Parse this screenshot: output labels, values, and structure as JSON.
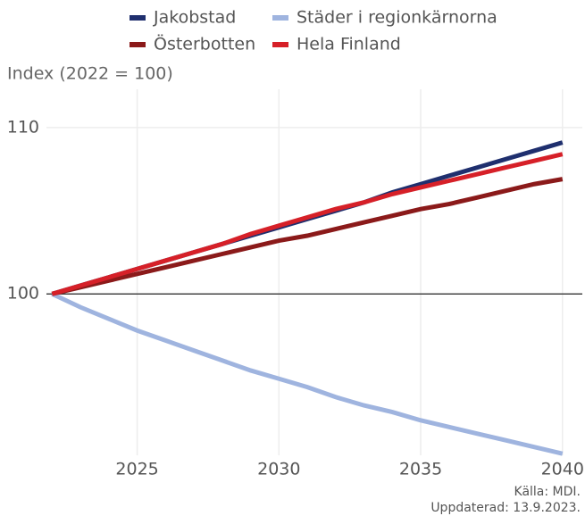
{
  "chart_data": {
    "type": "line",
    "y_axis_label": "Index (2022 = 100)",
    "x": [
      2022,
      2023,
      2024,
      2025,
      2026,
      2027,
      2028,
      2029,
      2030,
      2031,
      2032,
      2033,
      2034,
      2035,
      2036,
      2037,
      2038,
      2039,
      2040
    ],
    "series": [
      {
        "name": "Jakobstad",
        "color": "#1f2f6e",
        "values": [
          100,
          100.5,
          101.0,
          101.5,
          102.0,
          102.5,
          103.0,
          103.5,
          104.0,
          104.5,
          105.0,
          105.5,
          106.1,
          106.6,
          107.1,
          107.6,
          108.1,
          108.6,
          109.1
        ]
      },
      {
        "name": "Städer i regionkärnorna",
        "color": "#9fb4df",
        "values": [
          100,
          99.2,
          98.5,
          97.8,
          97.2,
          96.6,
          96.0,
          95.4,
          94.9,
          94.4,
          93.8,
          93.3,
          92.9,
          92.4,
          92.0,
          91.6,
          91.2,
          90.8,
          90.4
        ]
      },
      {
        "name": "Österbotten",
        "color": "#8b1a1a",
        "values": [
          100,
          100.4,
          100.8,
          101.2,
          101.6,
          102.0,
          102.4,
          102.8,
          103.2,
          103.5,
          103.9,
          104.3,
          104.7,
          105.1,
          105.4,
          105.8,
          106.2,
          106.6,
          106.9
        ]
      },
      {
        "name": "Hela Finland",
        "color": "#d62028",
        "values": [
          100,
          100.5,
          101.0,
          101.5,
          102.0,
          102.5,
          103.0,
          103.6,
          104.1,
          104.6,
          105.1,
          105.5,
          106.0,
          106.4,
          106.8,
          107.2,
          107.6,
          108.0,
          108.4
        ]
      }
    ],
    "xlim": [
      2021.8,
      2040.7
    ],
    "xticks": [
      2025,
      2030,
      2035,
      2040
    ],
    "ylim": [
      90.3,
      112.3
    ],
    "yticks": [
      100,
      110
    ],
    "reference_line": 100,
    "grid": true,
    "legend": "top",
    "source": [
      "Källa: MDI.",
      "Uppdaterad: 13.9.2023."
    ]
  }
}
